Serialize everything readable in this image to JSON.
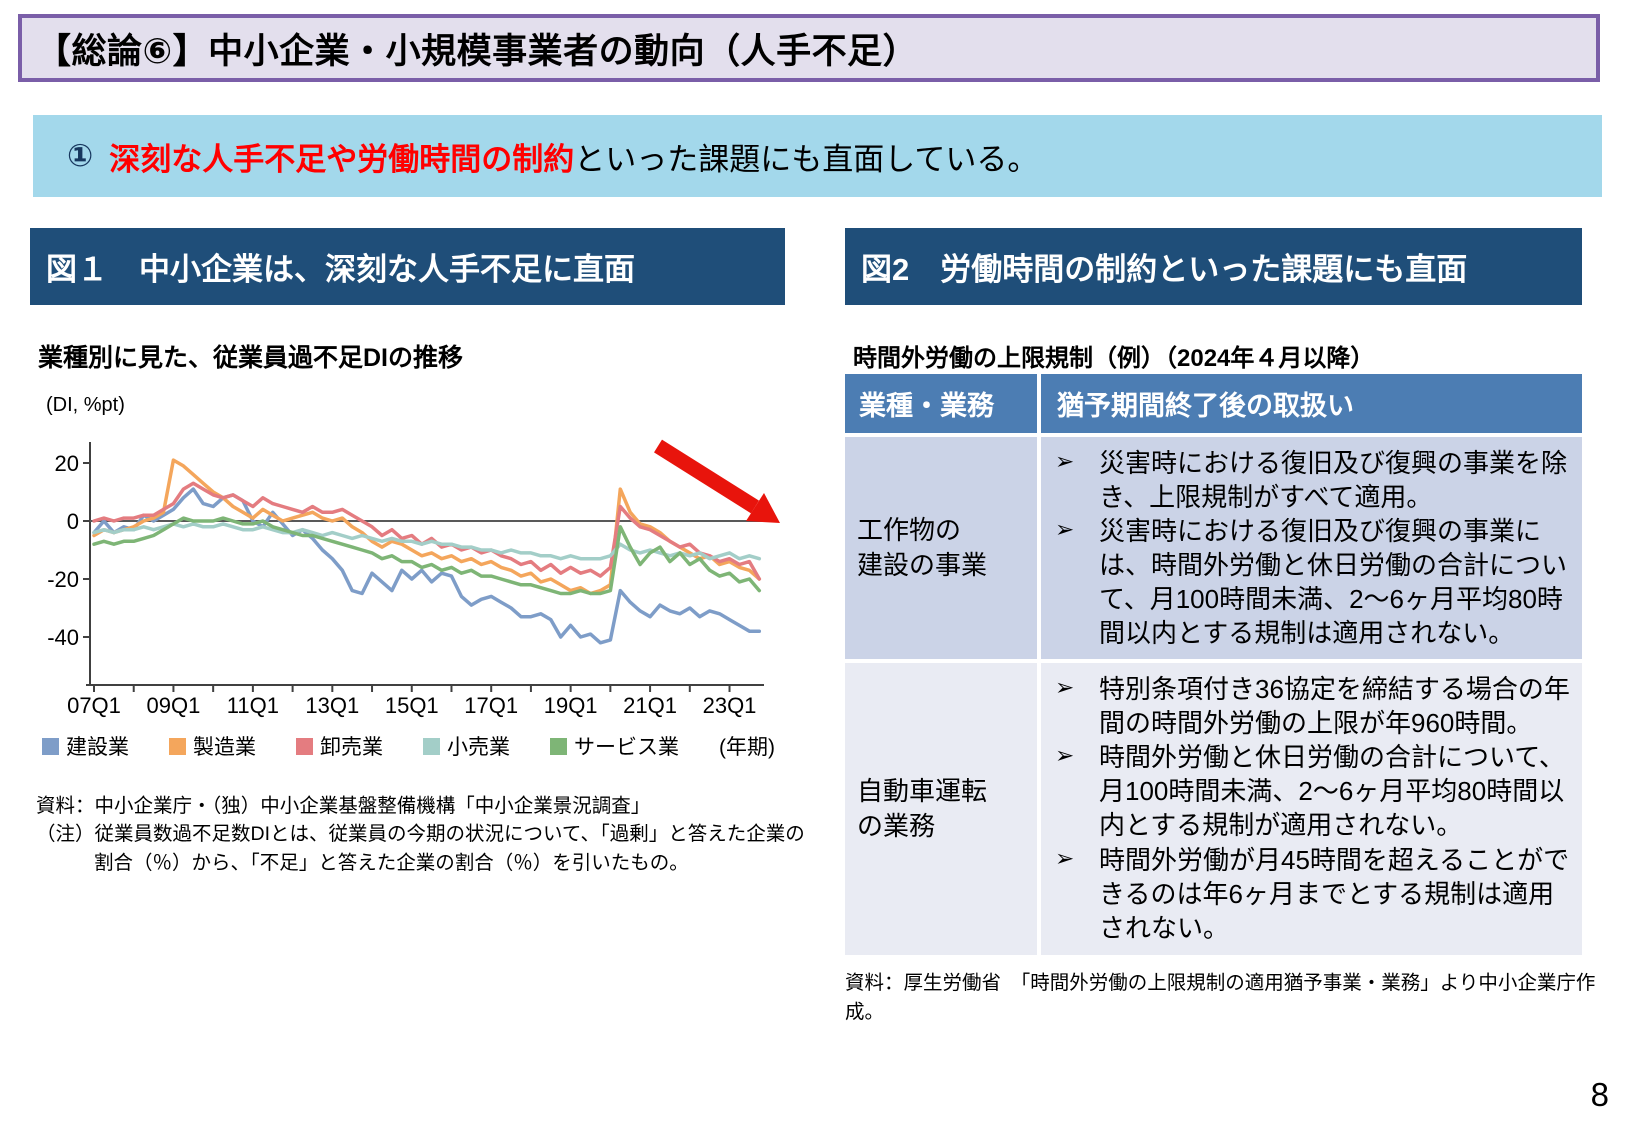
{
  "header": {
    "title": "【総論⑥】中小企業・小規模事業者の動向（人手不足）"
  },
  "callout": {
    "number": "①",
    "highlight": "深刻な人手不足や労働時間の制約",
    "rest": "といった課題にも直面している。"
  },
  "figure1": {
    "header": "図１　中小企業は、深刻な人手不足に直面",
    "chart_title": "業種別に見た、従業員過不足DIの推移",
    "source": "資料：中小企業庁・（独）中小企業基盤整備機構「中小企業景況調査」",
    "note_line1": "（注）従業員数過不足数DIとは、従業員の今期の状況について、「過剰」と答えた企業の",
    "note_line2": "割合（％）から、「不足」と答えた企業の割合（％）を引いたもの。"
  },
  "chart_data": {
    "type": "line",
    "title": "業種別に見た、従業員過不足DIの推移",
    "y_unit": "(DI, %pt)",
    "x_unit": "(年期)",
    "x_description": "quarterly from 2007Q1 to 2023Q4",
    "x_tick_labels": [
      "07Q1",
      "09Q1",
      "11Q1",
      "13Q1",
      "15Q1",
      "17Q1",
      "19Q1",
      "21Q1",
      "23Q1"
    ],
    "x_tick_positions": [
      0,
      8,
      16,
      24,
      32,
      40,
      48,
      56,
      64
    ],
    "y_ticks": [
      20,
      0,
      -20,
      -40
    ],
    "ylim": [
      -55,
      25
    ],
    "grid": false,
    "legend_position": "bottom",
    "annotation": {
      "shape": "arrow-down-right",
      "color": "#E8140C"
    },
    "series": [
      {
        "name": "建設業",
        "color": "#7E9DC8",
        "values": [
          -4,
          0,
          -4,
          -2,
          -3,
          2,
          0,
          2,
          4,
          8,
          11,
          6,
          5,
          8,
          9,
          7,
          0,
          -2,
          3,
          -1,
          -5,
          -3,
          -6,
          -10,
          -13,
          -17,
          -24,
          -25,
          -18,
          -21,
          -24,
          -17,
          -20,
          -17,
          -21,
          -18,
          -19,
          -26,
          -29,
          -27,
          -26,
          -28,
          -30,
          -33,
          -33,
          -32,
          -34,
          -40,
          -36,
          -40,
          -39,
          -42,
          -41,
          -24,
          -28,
          -31,
          -33,
          -29,
          -31,
          -32,
          -30,
          -33,
          -31,
          -32,
          -34,
          -36,
          -38,
          -38
        ]
      },
      {
        "name": "製造業",
        "color": "#F4A65C",
        "values": [
          -5,
          -3,
          -4,
          -3,
          -2,
          0,
          1,
          3,
          21,
          19,
          16,
          13,
          10,
          8,
          5,
          3,
          1,
          4,
          2,
          0,
          1,
          2,
          3,
          1,
          0,
          1,
          -2,
          -4,
          -7,
          -9,
          -7,
          -8,
          -10,
          -12,
          -11,
          -13,
          -12,
          -14,
          -13,
          -15,
          -14,
          -16,
          -17,
          -19,
          -18,
          -21,
          -20,
          -22,
          -24,
          -23,
          -25,
          -24,
          -22,
          11,
          3,
          -1,
          -2,
          -4,
          -7,
          -9,
          -11,
          -13,
          -12,
          -15,
          -14,
          -16,
          -17,
          -20
        ]
      },
      {
        "name": "卸売業",
        "color": "#E47C80",
        "values": [
          0,
          1,
          0,
          1,
          1,
          2,
          2,
          4,
          6,
          11,
          13,
          11,
          9,
          8,
          9,
          7,
          5,
          8,
          6,
          5,
          4,
          3,
          5,
          3,
          3,
          4,
          2,
          0,
          -2,
          -5,
          -3,
          -6,
          -5,
          -8,
          -6,
          -9,
          -8,
          -10,
          -9,
          -11,
          -10,
          -12,
          -13,
          -15,
          -14,
          -17,
          -15,
          -18,
          -16,
          -18,
          -17,
          -19,
          -16,
          5,
          1,
          -2,
          -3,
          -5,
          -7,
          -9,
          -8,
          -11,
          -12,
          -14,
          -13,
          -15,
          -14,
          -20
        ]
      },
      {
        "name": "小売業",
        "color": "#A3CEC8",
        "values": [
          -4,
          -3,
          -4,
          -3,
          -3,
          -2,
          -3,
          -2,
          -1,
          -2,
          -1,
          -2,
          -2,
          -1,
          -2,
          -3,
          -3,
          -2,
          -3,
          -4,
          -4,
          -3,
          -4,
          -5,
          -4,
          -5,
          -6,
          -5,
          -6,
          -7,
          -6,
          -7,
          -7,
          -8,
          -7,
          -8,
          -8,
          -9,
          -9,
          -10,
          -10,
          -11,
          -10,
          -11,
          -11,
          -12,
          -12,
          -13,
          -12,
          -13,
          -13,
          -13,
          -12,
          -8,
          -10,
          -11,
          -10,
          -11,
          -12,
          -11,
          -12,
          -11,
          -13,
          -12,
          -11,
          -13,
          -12,
          -13
        ]
      },
      {
        "name": "サービス業",
        "color": "#7EB576",
        "values": [
          -8,
          -7,
          -8,
          -7,
          -7,
          -6,
          -5,
          -3,
          -1,
          1,
          0,
          0,
          0,
          1,
          0,
          -1,
          -1,
          0,
          -2,
          -3,
          -4,
          -5,
          -5,
          -6,
          -7,
          -8,
          -9,
          -10,
          -11,
          -13,
          -12,
          -14,
          -14,
          -16,
          -15,
          -17,
          -16,
          -18,
          -17,
          -19,
          -19,
          -20,
          -21,
          -22,
          -22,
          -23,
          -24,
          -25,
          -25,
          -24,
          -25,
          -25,
          -24,
          -2,
          -9,
          -15,
          -11,
          -9,
          -14,
          -11,
          -15,
          -13,
          -17,
          -19,
          -18,
          -21,
          -20,
          -24
        ]
      }
    ]
  },
  "figure2": {
    "header": "図2　労働時間の制約といった課題にも直面",
    "subtitle": "時間外労働の上限規制（例）（2024年４月以降）",
    "source": "資料：厚生労働省　「時間外労働の上限規制の適用猶予事業・業務」より中小企業庁作成。",
    "table": {
      "bullet": "➢",
      "col1": "業種・業務",
      "col2": "猶予期間終了後の取扱い",
      "rows": [
        {
          "label_lines": [
            "工作物の",
            "建設の事業"
          ],
          "points": [
            "災害時における復旧及び復興の事業を除き、上限規制がすべて適用。",
            "災害時における復旧及び復興の事業には、時間外労働と休日労働の合計について、月100時間未満、2～6ヶ月平均80時間以内とする規制は適用されない。"
          ]
        },
        {
          "label_lines": [
            "自動車運転",
            "の業務"
          ],
          "points": [
            "特別条項付き36協定を締結する場合の年間の時間外労働の上限が年960時間。",
            "時間外労働と休日労働の合計について、月100時間未満、2～6ヶ月平均80時間以内とする規制が適用されない。",
            "時間外労働が月45時間を超えることができるのは年6ヶ月までとする規制は適用されない。"
          ]
        }
      ]
    }
  },
  "page_number": "8",
  "colors": {
    "title_bar_bg": "#E3DFED",
    "title_bar_border": "#7A5EA8",
    "callout_bg": "#A3D8EB",
    "callout_number": "#17375E",
    "highlight_red": "#FF0000",
    "figure_header_bg": "#1F4E79",
    "table_header_bg": "#4C7DB3",
    "table_row1_bg": "#CBD3E7",
    "table_row2_bg": "#E9EBF3",
    "arrow_red": "#E8140C"
  }
}
